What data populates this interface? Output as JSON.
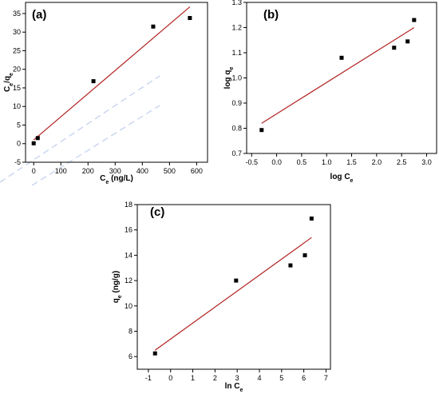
{
  "chart_data": [
    {
      "type": "scatter",
      "panel_label": "(a)",
      "xlabel": {
        "main": "C",
        "sub": "e",
        "suffix": " (ng/L)"
      },
      "ylabel": {
        "main": "C",
        "sub": "e",
        "mid": "/q",
        "sub2": "e"
      },
      "xlim": [
        -30,
        640
      ],
      "ylim": [
        -5,
        38
      ],
      "xticks": [
        0,
        100,
        200,
        300,
        400,
        500,
        600
      ],
      "yticks": [
        -5,
        0,
        5,
        10,
        15,
        20,
        25,
        30,
        35
      ],
      "points": [
        [
          0,
          0.1
        ],
        [
          15,
          1.5
        ],
        [
          220,
          16.8
        ],
        [
          440,
          31.5
        ],
        [
          575,
          33.8
        ]
      ],
      "fit": [
        [
          0,
          1.0
        ],
        [
          575,
          36.8
        ]
      ],
      "colors": {
        "fit": "#b22222",
        "points": "#000000"
      }
    },
    {
      "type": "scatter",
      "panel_label": "(b)",
      "xlabel": {
        "main": "log C",
        "sub": "e"
      },
      "ylabel": {
        "main": "log q",
        "sub": "e"
      },
      "xlim": [
        -0.6,
        3.2
      ],
      "ylim": [
        0.7,
        1.3
      ],
      "xticks": [
        -0.5,
        0.0,
        0.5,
        1.0,
        1.5,
        2.0,
        2.5,
        3.0
      ],
      "yticks": [
        0.7,
        0.8,
        0.9,
        1.0,
        1.1,
        1.2,
        1.3
      ],
      "tick_decimals": {
        "x": 1,
        "y": 1
      },
      "points": [
        [
          -0.3,
          0.793
        ],
        [
          1.3,
          1.08
        ],
        [
          2.35,
          1.12
        ],
        [
          2.62,
          1.145
        ],
        [
          2.75,
          1.23
        ]
      ],
      "fit": [
        [
          -0.3,
          0.82
        ],
        [
          2.75,
          1.2
        ]
      ],
      "colors": {
        "fit": "#b22222",
        "points": "#000000"
      }
    },
    {
      "type": "scatter",
      "panel_label": "(c)",
      "xlabel": {
        "main": "ln C",
        "sub": "e"
      },
      "ylabel": {
        "main": "q",
        "sub": "e",
        "suffix": " (ng/g)"
      },
      "xlim": [
        -1.5,
        7.2
      ],
      "ylim": [
        5,
        18
      ],
      "xticks": [
        -1,
        0,
        1,
        2,
        3,
        4,
        5,
        6,
        7
      ],
      "yticks": [
        6,
        8,
        10,
        12,
        14,
        16,
        18
      ],
      "points": [
        [
          -0.7,
          6.25
        ],
        [
          2.95,
          12.0
        ],
        [
          5.4,
          13.2
        ],
        [
          6.05,
          14.0
        ],
        [
          6.35,
          16.9
        ]
      ],
      "fit": [
        [
          -0.7,
          6.5
        ],
        [
          6.35,
          15.4
        ]
      ],
      "colors": {
        "fit": "#b22222",
        "points": "#000000"
      }
    }
  ]
}
